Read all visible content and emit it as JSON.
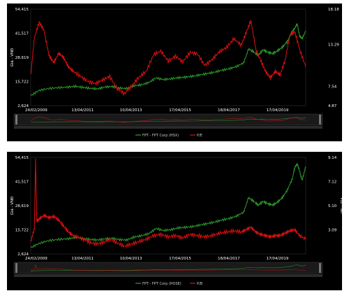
{
  "chart_data": [
    {
      "type": "line",
      "ylabel_left": "Giá - VNĐ",
      "ylabel_right": "",
      "y_left_ticks": [
        "2,624",
        "15,722",
        "28,619",
        "41,517",
        "54,415"
      ],
      "y_left_range": [
        2624,
        54415
      ],
      "y_right_ticks": [
        "4.87",
        "7.54",
        "13.29",
        "18.18"
      ],
      "y_right_range": [
        4.87,
        18.18
      ],
      "x_ticks": [
        "24/02/2009",
        "13/04/2011",
        "10/04/2013",
        "17/04/2015",
        "18/04/2017",
        "17/04/2019"
      ],
      "x_range": [
        2009.15,
        2020.45
      ],
      "legend": "bottom-center",
      "series": [
        {
          "name": "FPT - FPT Corp (HSX)",
          "color": "#2f9e2f",
          "axis": "left",
          "x": [
            2009.15,
            2009.5,
            2009.9,
            2010.3,
            2010.7,
            2011.0,
            2011.3,
            2011.6,
            2011.9,
            2012.2,
            2012.5,
            2012.8,
            2013.1,
            2013.4,
            2013.7,
            2014.0,
            2014.3,
            2014.6,
            2014.9,
            2015.2,
            2015.5,
            2015.8,
            2016.1,
            2016.4,
            2016.7,
            2017.0,
            2017.3,
            2017.6,
            2017.9,
            2018.1,
            2018.3,
            2018.5,
            2018.7,
            2018.9,
            2019.1,
            2019.3,
            2019.5,
            2019.7,
            2019.9,
            2020.0,
            2020.1,
            2020.2,
            2020.3,
            2020.45
          ],
          "values": [
            8000,
            10800,
            11800,
            12300,
            12600,
            13000,
            12400,
            11900,
            11600,
            12600,
            12900,
            12000,
            11800,
            13300,
            13800,
            15000,
            17500,
            16600,
            17000,
            17600,
            17900,
            18400,
            19100,
            19800,
            20600,
            21600,
            22400,
            23600,
            25600,
            33000,
            31600,
            29600,
            32600,
            31200,
            30600,
            32100,
            34100,
            37100,
            42600,
            44100,
            46600,
            40100,
            38600,
            42600
          ]
        },
        {
          "name": "P/E",
          "color": "#e01010",
          "axis": "right",
          "x": [
            2009.15,
            2009.3,
            2009.5,
            2009.7,
            2009.9,
            2010.1,
            2010.3,
            2010.5,
            2010.7,
            2010.9,
            2011.2,
            2011.5,
            2011.8,
            2012.1,
            2012.4,
            2012.7,
            2013.0,
            2013.3,
            2013.6,
            2013.9,
            2014.2,
            2014.5,
            2014.8,
            2015.1,
            2015.4,
            2015.7,
            2016.0,
            2016.3,
            2016.6,
            2016.9,
            2017.2,
            2017.5,
            2017.8,
            2018.0,
            2018.2,
            2018.4,
            2018.6,
            2018.8,
            2019.0,
            2019.2,
            2019.4,
            2019.6,
            2019.8,
            2020.0,
            2020.2,
            2020.45
          ],
          "values": [
            9.0,
            14.2,
            16.4,
            15.2,
            11.8,
            10.8,
            12.1,
            11.5,
            10.2,
            9.6,
            8.9,
            8.2,
            7.9,
            8.4,
            8.9,
            7.2,
            6.5,
            7.6,
            8.8,
            9.6,
            11.9,
            12.4,
            11.0,
            11.7,
            10.9,
            12.2,
            12.0,
            10.4,
            11.2,
            12.3,
            12.9,
            14.1,
            13.2,
            14.9,
            16.6,
            12.6,
            11.1,
            9.6,
            8.7,
            9.6,
            9.1,
            11.1,
            14.6,
            15.1,
            12.6,
            10.2
          ]
        }
      ]
    },
    {
      "type": "line",
      "ylabel_left": "Giá - VNĐ",
      "ylabel_right": "P/B - lần",
      "y_left_ticks": [
        "2,624",
        "15,722",
        "28,619",
        "41,517",
        "54,415"
      ],
      "y_left_range": [
        2624,
        54415
      ],
      "y_right_ticks": [
        "3.09",
        "5.10",
        "7.12",
        "9.14"
      ],
      "y_right_range": [
        1.07,
        9.14
      ],
      "x_ticks": [
        "24/02/2009",
        "13/04/2011",
        "10/04/2013",
        "17/04/2015",
        "18/04/2017",
        "17/04/2019"
      ],
      "x_range": [
        2009.15,
        2020.45
      ],
      "legend": "bottom-center",
      "series": [
        {
          "name": "FPT - FPT Corp (HOSE)",
          "color": "#2f9e2f",
          "axis": "left",
          "x": [
            2009.15,
            2009.5,
            2009.9,
            2010.3,
            2010.7,
            2011.0,
            2011.3,
            2011.6,
            2011.9,
            2012.2,
            2012.5,
            2012.8,
            2013.1,
            2013.4,
            2013.7,
            2014.0,
            2014.3,
            2014.6,
            2014.9,
            2015.2,
            2015.5,
            2015.8,
            2016.1,
            2016.4,
            2016.7,
            2017.0,
            2017.3,
            2017.6,
            2017.9,
            2018.1,
            2018.3,
            2018.5,
            2018.7,
            2018.9,
            2019.1,
            2019.3,
            2019.5,
            2019.7,
            2019.9,
            2020.0,
            2020.1,
            2020.2,
            2020.3,
            2020.45
          ],
          "values": [
            6000,
            8300,
            9800,
            10400,
            10800,
            11500,
            10900,
            10400,
            10100,
            10700,
            11000,
            10300,
            10100,
            11700,
            12400,
            13500,
            16300,
            15200,
            15600,
            16600,
            16900,
            17300,
            18100,
            18900,
            19700,
            20800,
            21600,
            22900,
            25000,
            32800,
            31000,
            28800,
            30800,
            29500,
            28900,
            30500,
            33000,
            37000,
            43000,
            49000,
            51000,
            47000,
            42000,
            49500
          ]
        },
        {
          "name": "P/B",
          "color": "#e01010",
          "axis": "right",
          "x": [
            2009.15,
            2009.3,
            2009.35,
            2009.4,
            2009.5,
            2009.7,
            2009.9,
            2010.1,
            2010.3,
            2010.5,
            2010.7,
            2010.9,
            2011.2,
            2011.5,
            2011.8,
            2012.1,
            2012.4,
            2012.7,
            2013.0,
            2013.3,
            2013.6,
            2013.9,
            2014.2,
            2014.5,
            2014.8,
            2015.1,
            2015.4,
            2015.7,
            2016.0,
            2016.3,
            2016.6,
            2016.9,
            2017.2,
            2017.5,
            2017.8,
            2018.0,
            2018.2,
            2018.4,
            2018.6,
            2018.8,
            2019.0,
            2019.2,
            2019.4,
            2019.6,
            2019.8,
            2020.0,
            2020.2,
            2020.45
          ],
          "values": [
            2.1,
            3.2,
            9.0,
            3.8,
            4.0,
            4.3,
            4.1,
            4.2,
            3.9,
            3.4,
            2.9,
            2.6,
            2.4,
            2.1,
            1.9,
            2.0,
            2.3,
            2.0,
            1.7,
            1.9,
            2.1,
            2.3,
            2.6,
            2.7,
            2.5,
            2.6,
            2.4,
            2.7,
            2.6,
            2.5,
            2.6,
            2.8,
            2.9,
            3.0,
            2.9,
            3.1,
            3.3,
            2.9,
            2.7,
            2.6,
            2.5,
            2.6,
            2.6,
            2.8,
            3.0,
            3.1,
            2.6,
            2.3
          ]
        }
      ]
    }
  ]
}
